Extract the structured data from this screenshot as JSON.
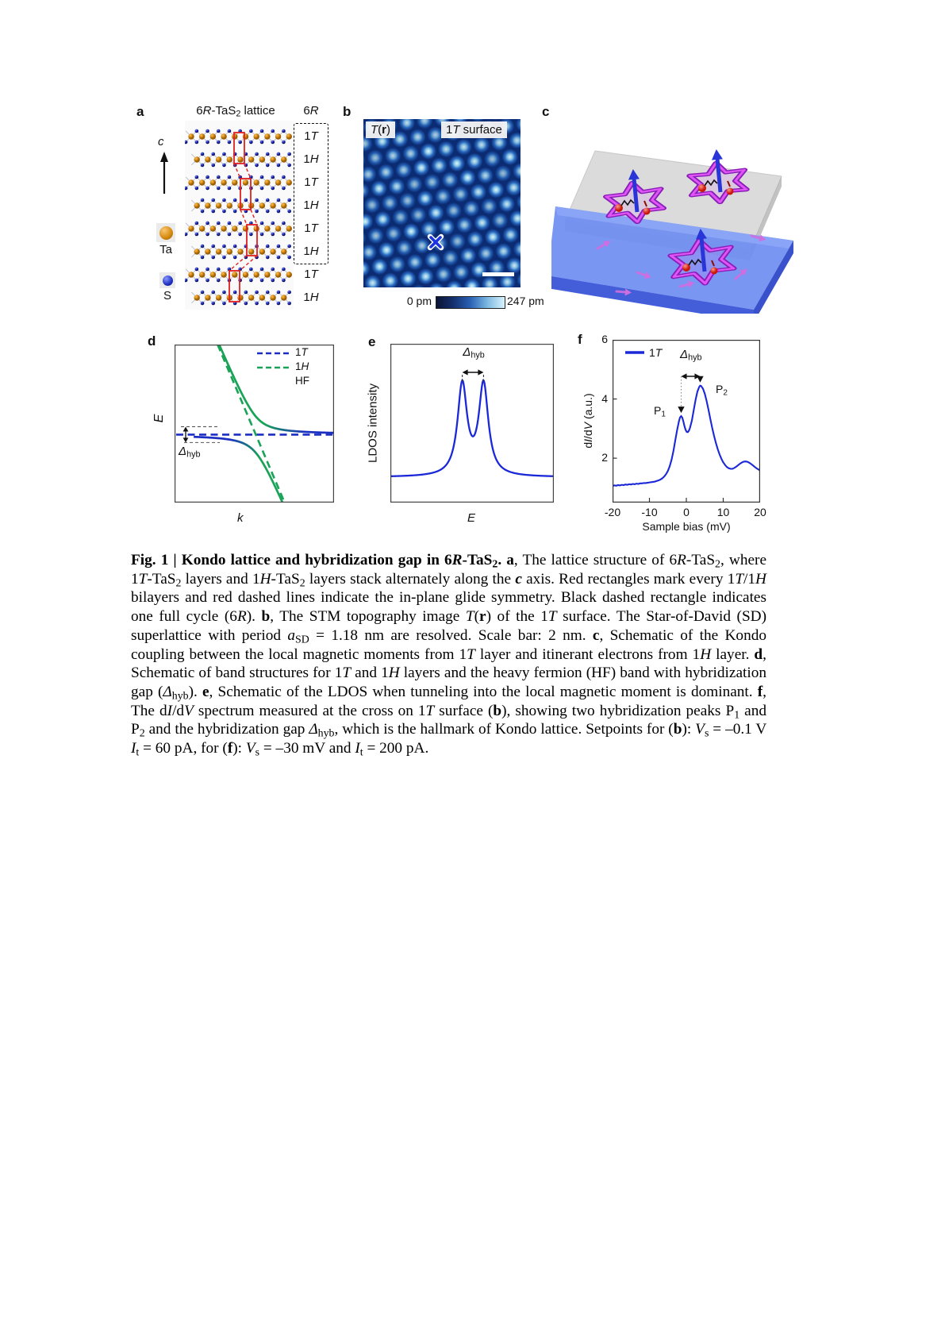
{
  "figure": {
    "panels": {
      "a": {
        "label": "a",
        "title": [
          {
            "t": "6"
          },
          {
            "t": "R",
            "i": true
          },
          {
            "t": "-TaS"
          },
          {
            "t": "2",
            "sub": true
          },
          {
            "t": " lattice"
          }
        ],
        "cycle_label": [
          {
            "t": "6"
          },
          {
            "t": "R",
            "i": true
          }
        ],
        "c_axis_label": [
          {
            "t": "c",
            "i": true
          }
        ],
        "ta_label": "Ta",
        "s_label": "S",
        "layers": [
          {
            "label": [
              {
                "t": "1"
              },
              {
                "t": "T",
                "i": true
              }
            ],
            "in_cycle": true
          },
          {
            "label": [
              {
                "t": "1"
              },
              {
                "t": "H",
                "i": true
              }
            ],
            "in_cycle": true
          },
          {
            "label": [
              {
                "t": "1"
              },
              {
                "t": "T",
                "i": true
              }
            ],
            "in_cycle": true
          },
          {
            "label": [
              {
                "t": "1"
              },
              {
                "t": "H",
                "i": true
              }
            ],
            "in_cycle": true
          },
          {
            "label": [
              {
                "t": "1"
              },
              {
                "t": "T",
                "i": true
              }
            ],
            "in_cycle": true
          },
          {
            "label": [
              {
                "t": "1"
              },
              {
                "t": "H",
                "i": true
              }
            ],
            "in_cycle": true
          },
          {
            "label": [
              {
                "t": "1"
              },
              {
                "t": "T",
                "i": true
              }
            ],
            "in_cycle": false
          },
          {
            "label": [
              {
                "t": "1"
              },
              {
                "t": "H",
                "i": true
              }
            ],
            "in_cycle": false
          }
        ]
      },
      "b": {
        "label": "b",
        "tag_topo": [
          {
            "t": "T",
            "i": true
          },
          {
            "t": "("
          },
          {
            "t": "r",
            "b": true
          },
          {
            "t": ")"
          }
        ],
        "tag_surface": [
          {
            "t": "1"
          },
          {
            "t": "T",
            "i": true
          },
          {
            "t": " surface"
          }
        ],
        "colorbar_min": "0 pm",
        "colorbar_max": "247 pm"
      },
      "c": {
        "label": "c"
      },
      "d": {
        "label": "d",
        "legend": [
          {
            "style": "dashed-blue",
            "label": [
              {
                "t": "1"
              },
              {
                "t": "T",
                "i": true
              }
            ]
          },
          {
            "style": "dashed-green",
            "label": [
              {
                "t": "1"
              },
              {
                "t": "H",
                "i": true
              }
            ]
          },
          {
            "style": "solid-gradient",
            "label": [
              {
                "t": "HF"
              }
            ]
          }
        ],
        "ylabel": [
          {
            "t": "E",
            "i": true
          }
        ],
        "xlabel": [
          {
            "t": "k",
            "i": true
          }
        ],
        "gap_label": [
          {
            "t": "Δ",
            "i": true
          },
          {
            "t": "hyb",
            "sub": true
          }
        ]
      },
      "e": {
        "label": "e",
        "ylabel": "LDOS intensity",
        "xlabel": [
          {
            "t": "E",
            "i": true
          }
        ],
        "gap_label": [
          {
            "t": "Δ",
            "i": true
          },
          {
            "t": "hyb",
            "sub": true
          }
        ]
      },
      "f": {
        "label": "f",
        "legend_label": [
          {
            "t": "1"
          },
          {
            "t": "T",
            "i": true
          }
        ],
        "ylabel": [
          {
            "t": "d"
          },
          {
            "t": "I",
            "i": true
          },
          {
            "t": "/d"
          },
          {
            "t": "V",
            "i": true
          },
          {
            "t": " (a.u.)"
          }
        ],
        "xlabel": "Sample bias (mV)",
        "gap_label": [
          {
            "t": "Δ",
            "i": true
          },
          {
            "t": "hyb",
            "sub": true
          }
        ],
        "p1_label": [
          {
            "t": "P"
          },
          {
            "t": "1",
            "sub": true
          }
        ],
        "p2_label": [
          {
            "t": "P"
          },
          {
            "t": "2",
            "sub": true
          }
        ]
      }
    },
    "caption": {
      "segments": [
        {
          "t": "Fig. 1 | Kondo lattice and hybridization gap in 6",
          "b": true
        },
        {
          "t": "R",
          "b": true,
          "i": true
        },
        {
          "t": "-TaS",
          "b": true
        },
        {
          "t": "2",
          "b": true,
          "sub": true
        },
        {
          "t": ". ",
          "b": true
        },
        {
          "t": "a",
          "b": true
        },
        {
          "t": ", The lattice structure of 6"
        },
        {
          "t": "R",
          "i": true
        },
        {
          "t": "-TaS"
        },
        {
          "t": "2",
          "sub": true
        },
        {
          "t": ", where 1"
        },
        {
          "t": "T",
          "i": true
        },
        {
          "t": "-TaS"
        },
        {
          "t": "2",
          "sub": true
        },
        {
          "t": " layers and 1"
        },
        {
          "t": "H",
          "i": true
        },
        {
          "t": "-TaS"
        },
        {
          "t": "2",
          "sub": true
        },
        {
          "t": " layers stack alternately along the "
        },
        {
          "t": "c",
          "b": true,
          "i": true
        },
        {
          "t": " axis. Red rectangles mark every 1"
        },
        {
          "t": "T",
          "i": true
        },
        {
          "t": "/1"
        },
        {
          "t": "H",
          "i": true
        },
        {
          "t": " bilayers and red dashed lines indicate the in-plane glide symmetry. Black dashed rectangle indicates one full cycle (6"
        },
        {
          "t": "R",
          "i": true
        },
        {
          "t": "). "
        },
        {
          "t": "b",
          "b": true
        },
        {
          "t": ", The STM topography image "
        },
        {
          "t": "T",
          "i": true
        },
        {
          "t": "("
        },
        {
          "t": "r",
          "b": true
        },
        {
          "t": ") of the 1"
        },
        {
          "t": "T",
          "i": true
        },
        {
          "t": " surface. The Star-of-David (SD) superlattice with period "
        },
        {
          "t": "a",
          "i": true
        },
        {
          "t": "SD",
          "sub": true
        },
        {
          "t": " = 1.18 nm are resolved. Scale bar: 2 nm. "
        },
        {
          "t": "c",
          "b": true
        },
        {
          "t": ", Schematic of the Kondo coupling between the local magnetic moments from 1"
        },
        {
          "t": "T",
          "i": true
        },
        {
          "t": " layer and itinerant electrons from 1"
        },
        {
          "t": "H",
          "i": true
        },
        {
          "t": " layer. "
        },
        {
          "t": "d",
          "b": true
        },
        {
          "t": ", Schematic of band structures for 1"
        },
        {
          "t": "T",
          "i": true
        },
        {
          "t": " and 1"
        },
        {
          "t": "H",
          "i": true
        },
        {
          "t": " layers and the heavy fermion (HF) band with hybridization gap ("
        },
        {
          "t": "Δ",
          "i": true
        },
        {
          "t": "hyb",
          "sub": true
        },
        {
          "t": "). "
        },
        {
          "t": "e",
          "b": true
        },
        {
          "t": ", Schematic of the LDOS when tunneling into the local magnetic moment is dominant. "
        },
        {
          "t": "f",
          "b": true
        },
        {
          "t": ", The d"
        },
        {
          "t": "I",
          "i": true
        },
        {
          "t": "/d"
        },
        {
          "t": "V",
          "i": true
        },
        {
          "t": " spectrum measured at the cross on 1"
        },
        {
          "t": "T",
          "i": true
        },
        {
          "t": " surface ("
        },
        {
          "t": "b",
          "b": true
        },
        {
          "t": "), showing two hybridization peaks P"
        },
        {
          "t": "1",
          "sub": true
        },
        {
          "t": " and P"
        },
        {
          "t": "2",
          "sub": true
        },
        {
          "t": " and the hybridization gap "
        },
        {
          "t": "Δ",
          "i": true
        },
        {
          "t": "hyb",
          "sub": true
        },
        {
          "t": ", which is the hallmark of Kondo lattice. Setpoints for ("
        },
        {
          "t": "b",
          "b": true
        },
        {
          "t": "): "
        },
        {
          "t": "V",
          "i": true
        },
        {
          "t": "s",
          "sub": true
        },
        {
          "t": " = –0.1 V "
        },
        {
          "t": "I",
          "i": true
        },
        {
          "t": "t",
          "sub": true
        },
        {
          "t": " = 60 pA, for ("
        },
        {
          "t": "f",
          "b": true
        },
        {
          "t": "): "
        },
        {
          "t": "V",
          "i": true
        },
        {
          "t": "s",
          "sub": true
        },
        {
          "t": " = –30 mV and "
        },
        {
          "t": "I",
          "i": true
        },
        {
          "t": "t",
          "sub": true
        },
        {
          "t": " = 200 pA."
        }
      ]
    }
  },
  "chart_data": [
    {
      "panel": "d",
      "type": "line",
      "title": "Band structure schematic",
      "xlabel": "k",
      "ylabel": "E",
      "legend": [
        "1T",
        "1H",
        "HF"
      ],
      "legend_position": "top-right",
      "description": "Flat 1T band (blue dashed) crossing dispersive 1H band (green dashed); hybridized heavy-fermion HF bands (solid) open a gap Δhyb",
      "flat_band_y_frac": 0.57,
      "dispersive_band_x_frac": {
        "x_at_top": 0.27,
        "x_at_bottom": 0.69
      },
      "hybridization_V_frac": 0.115,
      "gap_dash_y_fracs": [
        0.52,
        0.62
      ]
    },
    {
      "panel": "e",
      "type": "line",
      "title": "LDOS schematic",
      "xlabel": "E",
      "ylabel": "LDOS intensity",
      "annotation": "Δhyb between the two peaks",
      "peak_centers_frac": [
        0.44,
        0.57
      ],
      "peak_gamma_frac": 0.035,
      "baseline_frac": 0.84,
      "peak_top_frac": 0.23
    },
    {
      "panel": "f",
      "type": "line",
      "title": "dI/dV spectrum on 1T surface",
      "xlabel": "Sample bias (mV)",
      "ylabel": "dI/dV (a.u.)",
      "xlim": [
        -20,
        20
      ],
      "ylim": [
        0.5,
        6
      ],
      "xticks": [
        -20,
        -10,
        0,
        10,
        20
      ],
      "yticks": [
        2,
        4,
        6
      ],
      "legend": [
        "1T"
      ],
      "legend_position": "top-left",
      "annotations": {
        "P1_mV": -1.4,
        "P1_value": 3.42,
        "P2_mV": 3.75,
        "P2_value": 4.45,
        "gap_label": "Δhyb"
      },
      "series": [
        {
          "name": "1T",
          "points": [
            [
              -20,
              1.06
            ],
            [
              -19.5,
              1.08
            ],
            [
              -19,
              1.07
            ],
            [
              -18.5,
              1.09
            ],
            [
              -18,
              1.08
            ],
            [
              -17.5,
              1.1
            ],
            [
              -17,
              1.09
            ],
            [
              -16.5,
              1.11
            ],
            [
              -16,
              1.1
            ],
            [
              -15.5,
              1.12
            ],
            [
              -15,
              1.11
            ],
            [
              -14.5,
              1.13
            ],
            [
              -14,
              1.12
            ],
            [
              -13.5,
              1.14
            ],
            [
              -13,
              1.13
            ],
            [
              -12.5,
              1.15
            ],
            [
              -12,
              1.15
            ],
            [
              -11.5,
              1.16
            ],
            [
              -11,
              1.16
            ],
            [
              -10.5,
              1.17
            ],
            [
              -10,
              1.18
            ],
            [
              -9.5,
              1.19
            ],
            [
              -9,
              1.2
            ],
            [
              -8.5,
              1.21
            ],
            [
              -8,
              1.23
            ],
            [
              -7.5,
              1.25
            ],
            [
              -7,
              1.28
            ],
            [
              -6.5,
              1.32
            ],
            [
              -6,
              1.38
            ],
            [
              -5.5,
              1.46
            ],
            [
              -5,
              1.57
            ],
            [
              -4.5,
              1.73
            ],
            [
              -4,
              1.95
            ],
            [
              -3.5,
              2.24
            ],
            [
              -3,
              2.6
            ],
            [
              -2.5,
              2.95
            ],
            [
              -2,
              3.25
            ],
            [
              -1.7,
              3.38
            ],
            [
              -1.4,
              3.42
            ],
            [
              -1.1,
              3.37
            ],
            [
              -0.8,
              3.24
            ],
            [
              -0.5,
              3.08
            ],
            [
              -0.2,
              2.96
            ],
            [
              0.1,
              2.89
            ],
            [
              0.4,
              2.88
            ],
            [
              0.7,
              2.93
            ],
            [
              1,
              3.03
            ],
            [
              1.5,
              3.27
            ],
            [
              2,
              3.62
            ],
            [
              2.5,
              3.97
            ],
            [
              3,
              4.25
            ],
            [
              3.5,
              4.41
            ],
            [
              3.75,
              4.45
            ],
            [
              4,
              4.44
            ],
            [
              4.5,
              4.35
            ],
            [
              5,
              4.18
            ],
            [
              5.5,
              3.93
            ],
            [
              6,
              3.64
            ],
            [
              6.5,
              3.33
            ],
            [
              7,
              3.03
            ],
            [
              7.5,
              2.76
            ],
            [
              8,
              2.52
            ],
            [
              8.5,
              2.31
            ],
            [
              9,
              2.13
            ],
            [
              9.5,
              1.98
            ],
            [
              10,
              1.86
            ],
            [
              10.5,
              1.77
            ],
            [
              11,
              1.7
            ],
            [
              11.5,
              1.66
            ],
            [
              12,
              1.64
            ],
            [
              12.5,
              1.64
            ],
            [
              13,
              1.67
            ],
            [
              13.5,
              1.71
            ],
            [
              14,
              1.76
            ],
            [
              14.5,
              1.81
            ],
            [
              15,
              1.85
            ],
            [
              15.5,
              1.88
            ],
            [
              16,
              1.89
            ],
            [
              16.5,
              1.88
            ],
            [
              17,
              1.85
            ],
            [
              17.5,
              1.81
            ],
            [
              18,
              1.76
            ],
            [
              18.5,
              1.71
            ],
            [
              19,
              1.66
            ],
            [
              19.5,
              1.62
            ],
            [
              20,
              1.59
            ]
          ]
        }
      ]
    }
  ],
  "colors": {
    "band_blue": "#1b2ec2",
    "band_green": "#18a356",
    "curve_blue": "#1a28d8",
    "red_accent": "#e02020",
    "star_magenta_dark": "#8a1fb8",
    "star_magenta_light": "#e055f5",
    "slab_blue": "#6f8df2",
    "stm_background": "#0b2b72",
    "stm_dot_bright": "#e4f6fb"
  }
}
